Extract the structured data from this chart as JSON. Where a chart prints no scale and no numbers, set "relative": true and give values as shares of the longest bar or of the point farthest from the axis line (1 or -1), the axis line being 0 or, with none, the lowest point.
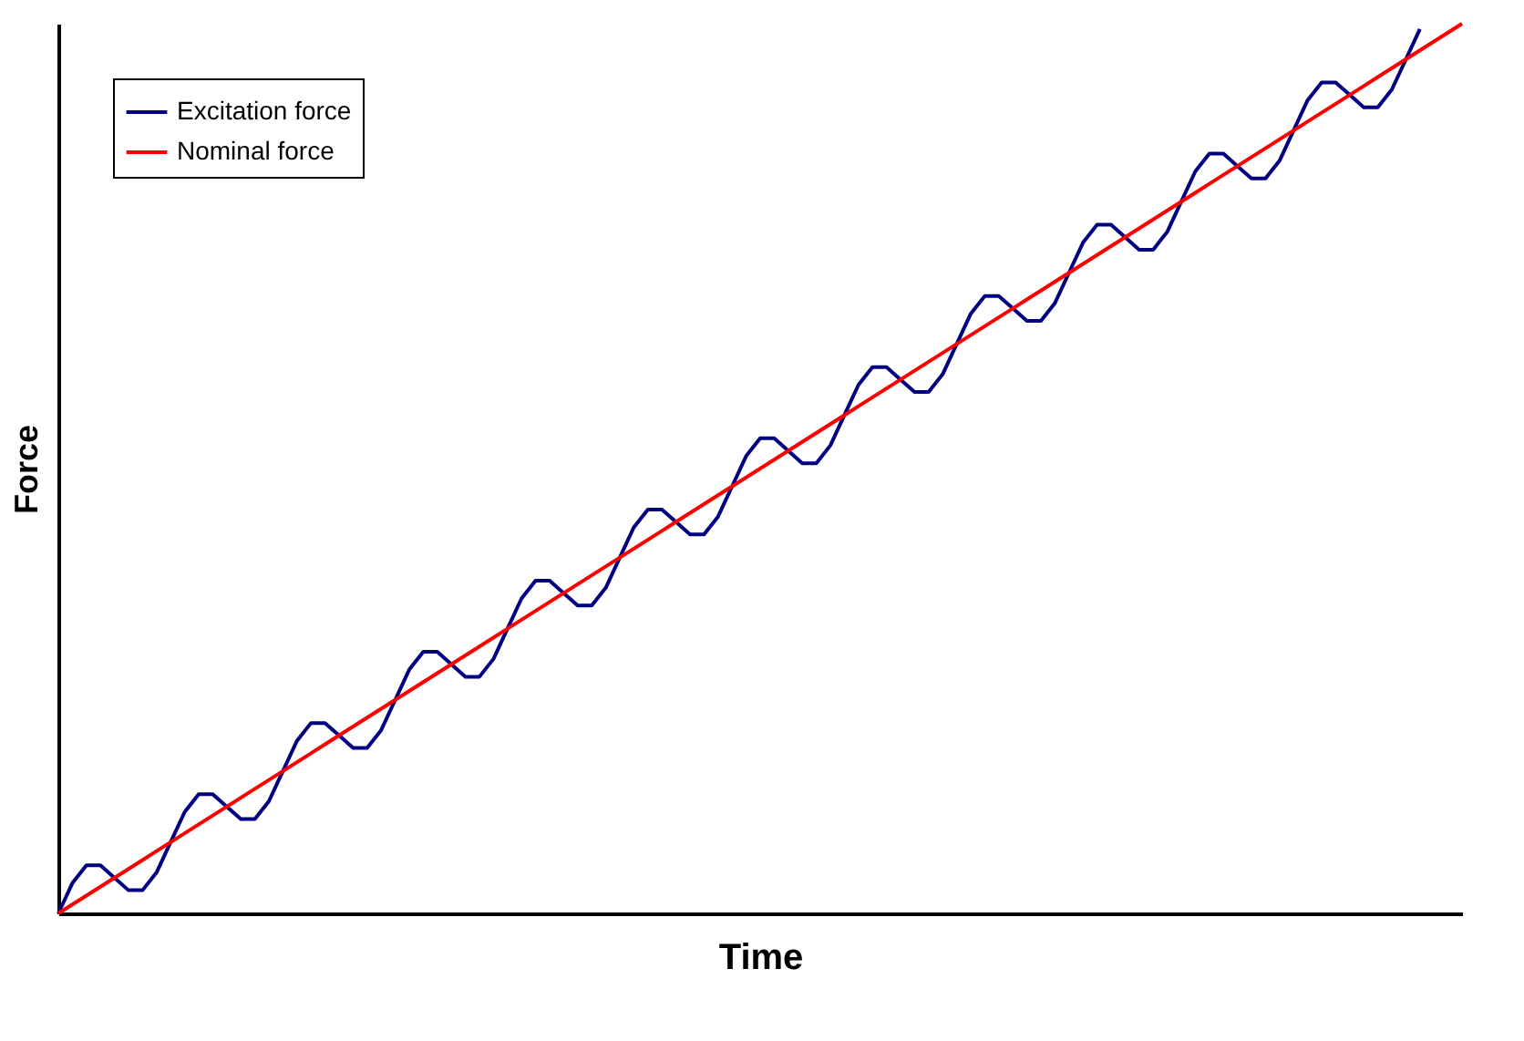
{
  "chart_data": {
    "type": "line",
    "relative": true,
    "xlabel": "Time",
    "ylabel": "Force",
    "legend": "top left",
    "grid": false,
    "marker": "none",
    "line_style": "solid",
    "categories": [
      null,
      null,
      null,
      null,
      null,
      null,
      null,
      null,
      null,
      null,
      null,
      null,
      null,
      null,
      null,
      null,
      null,
      null,
      null,
      null,
      null,
      null,
      null,
      null,
      null,
      null,
      null,
      null,
      null,
      null,
      null,
      null,
      null,
      null,
      null,
      null,
      null,
      null,
      null,
      null,
      null,
      null,
      null,
      null,
      null,
      null,
      null,
      null,
      null,
      null,
      null,
      null,
      null,
      null,
      null,
      null,
      null,
      null,
      null,
      null,
      null,
      null,
      null,
      null,
      null,
      null,
      null,
      null,
      null,
      null,
      null,
      null,
      null,
      null,
      null,
      null,
      null,
      null,
      null,
      null,
      null,
      null,
      null,
      null,
      null,
      null,
      null,
      null,
      null,
      null,
      null,
      null,
      null,
      null,
      null,
      null,
      null,
      null,
      null,
      null,
      null
    ],
    "series": [
      {
        "name": "Excitation force",
        "color": "#000080",
        "values": [
          0,
          0.034,
          0.054,
          0.054,
          0.04,
          0.026,
          0.026,
          0.046,
          0.08,
          0.114,
          0.134,
          0.134,
          0.12,
          0.106,
          0.106,
          0.126,
          0.16,
          0.194,
          0.214,
          0.214,
          0.2,
          0.186,
          0.186,
          0.206,
          0.24,
          0.274,
          0.294,
          0.294,
          0.28,
          0.266,
          0.266,
          0.286,
          0.32,
          0.354,
          0.374,
          0.374,
          0.36,
          0.346,
          0.346,
          0.366,
          0.4,
          0.434,
          0.454,
          0.454,
          0.44,
          0.426,
          0.426,
          0.446,
          0.48,
          0.514,
          0.534,
          0.534,
          0.52,
          0.506,
          0.506,
          0.526,
          0.56,
          0.594,
          0.614,
          0.614,
          0.6,
          0.586,
          0.586,
          0.606,
          0.64,
          0.674,
          0.694,
          0.694,
          0.68,
          0.666,
          0.666,
          0.686,
          0.72,
          0.754,
          0.774,
          0.774,
          0.76,
          0.746,
          0.746,
          0.766,
          0.8,
          0.834,
          0.854,
          0.854,
          0.84,
          0.826,
          0.826,
          0.846,
          0.88,
          0.914,
          0.934,
          0.934,
          0.92,
          0.906,
          0.906,
          0.926,
          0.96,
          0.994,
          null,
          null,
          null
        ]
      },
      {
        "name": "Nominal force",
        "color": "#ff0000",
        "values": [
          0,
          0.01,
          0.02,
          0.03,
          0.04,
          0.05,
          0.06,
          0.07,
          0.08,
          0.09,
          0.1,
          0.11,
          0.12,
          0.13,
          0.14,
          0.15,
          0.16,
          0.17,
          0.18,
          0.19,
          0.2,
          0.21,
          0.22,
          0.23,
          0.24,
          0.25,
          0.26,
          0.27,
          0.28,
          0.29,
          0.3,
          0.31,
          0.32,
          0.33,
          0.34,
          0.35,
          0.36,
          0.37,
          0.38,
          0.39,
          0.4,
          0.41,
          0.42,
          0.43,
          0.44,
          0.45,
          0.46,
          0.47,
          0.48,
          0.49,
          0.5,
          0.51,
          0.52,
          0.53,
          0.54,
          0.55,
          0.56,
          0.57,
          0.58,
          0.59,
          0.6,
          0.61,
          0.62,
          0.63,
          0.64,
          0.65,
          0.66,
          0.67,
          0.68,
          0.69,
          0.7,
          0.71,
          0.72,
          0.73,
          0.74,
          0.75,
          0.76,
          0.77,
          0.78,
          0.79,
          0.8,
          0.81,
          0.82,
          0.83,
          0.84,
          0.85,
          0.86,
          0.87,
          0.88,
          0.89,
          0.9,
          0.91,
          0.92,
          0.93,
          0.94,
          0.95,
          0.96,
          0.97,
          0.98,
          0.99,
          1
        ]
      }
    ]
  }
}
